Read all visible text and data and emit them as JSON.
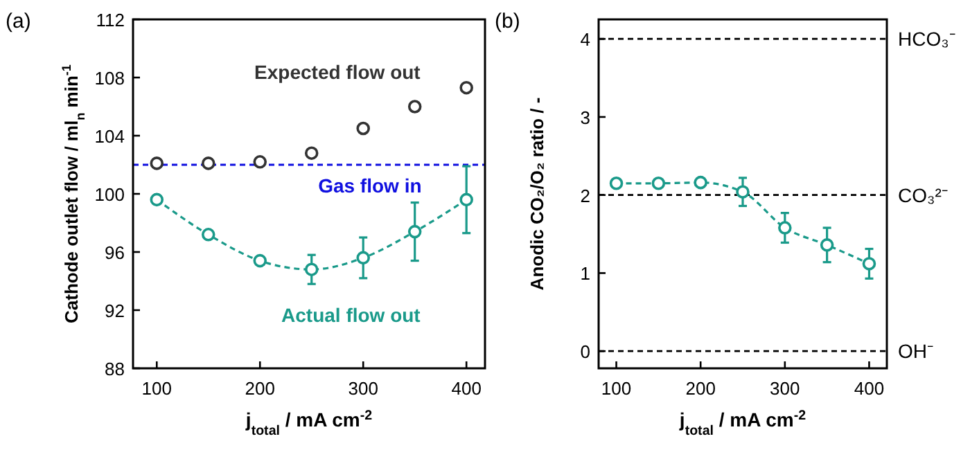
{
  "chart_data": [
    {
      "type": "line",
      "title": "(a)",
      "xlabel": "j$_{total}$ / mA cm$^{-2}$",
      "ylabel": "Cathode outlet flow / ml$_{n}$ min$^{-1}$",
      "x": [
        100,
        150,
        200,
        250,
        300,
        350,
        400
      ],
      "xlim": [
        77,
        418
      ],
      "xticks": [
        100,
        200,
        300,
        400
      ],
      "ylim": [
        88,
        112
      ],
      "yticks": [
        88,
        92,
        96,
        100,
        104,
        108,
        112
      ],
      "series": [
        {
          "name": "Expected flow out",
          "type": "scatter",
          "color": "#333333",
          "marker": "circle",
          "values": [
            102.1,
            102.1,
            102.2,
            102.8,
            104.5,
            106.0,
            107.3
          ]
        },
        {
          "name": "Actual flow out",
          "type": "line",
          "color": "#1a9a8a",
          "marker": "circle",
          "line_style": "dashed",
          "values": [
            99.6,
            97.2,
            95.4,
            94.8,
            95.6,
            97.4,
            99.6
          ],
          "errors": [
            null,
            null,
            null,
            1.0,
            1.4,
            2.0,
            2.3
          ]
        }
      ],
      "ref_lines": [
        {
          "axis": "y",
          "value": 102,
          "label": "Gas flow in",
          "color": "#1010e0",
          "line_style": "dashed"
        }
      ]
    },
    {
      "type": "line",
      "title": "(b)",
      "xlabel": "j$_{total}$ / mA cm$^{-2}$",
      "ylabel": "Anodic CO₂/O₂ ratio / -",
      "x": [
        100,
        150,
        200,
        250,
        300,
        350,
        400
      ],
      "xlim": [
        79,
        421
      ],
      "xticks": [
        100,
        200,
        300,
        400
      ],
      "ylim": [
        -0.22,
        4.25
      ],
      "yticks": [
        0,
        1,
        2,
        3,
        4
      ],
      "series": [
        {
          "type": "line",
          "color": "#1a9a8a",
          "marker": "circle",
          "line_style": "dashed",
          "values": [
            2.15,
            2.15,
            2.16,
            2.04,
            1.58,
            1.36,
            1.12
          ],
          "errors": [
            null,
            null,
            null,
            0.18,
            0.19,
            0.22,
            0.19
          ]
        }
      ],
      "ref_lines": [
        {
          "axis": "y",
          "value": 4,
          "label": "HCO₃⁻",
          "color": "#000000",
          "line_style": "dashed"
        },
        {
          "axis": "y",
          "value": 2,
          "label": "CO₃²⁻",
          "color": "#000000",
          "line_style": "dashed"
        },
        {
          "axis": "y",
          "value": 0,
          "label": "OH⁻",
          "color": "#000000",
          "line_style": "dashed"
        }
      ]
    }
  ]
}
